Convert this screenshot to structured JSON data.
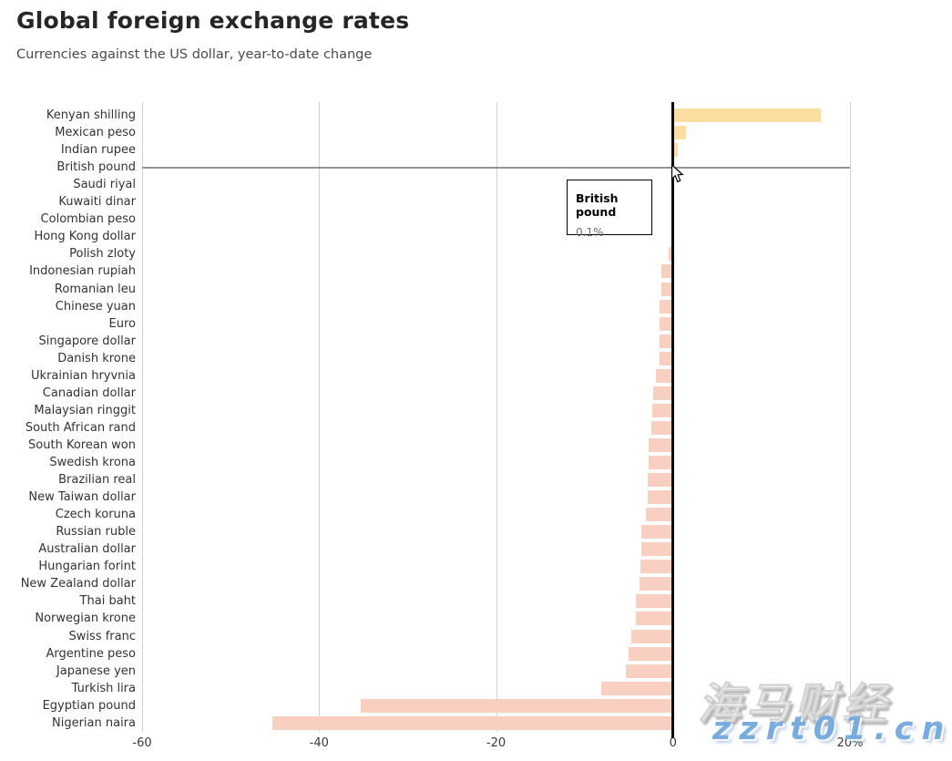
{
  "header": {
    "title": "Global foreign exchange rates",
    "subtitle": "Currencies against the US dollar, year-to-date change"
  },
  "chart_data": {
    "type": "bar",
    "orientation": "horizontal",
    "title": "Global foreign exchange rates",
    "subtitle": "Currencies against the US dollar, year-to-date change",
    "value_unit": "%",
    "xlim": [
      -60,
      20
    ],
    "grid": true,
    "x_ticks": [
      {
        "value": -60,
        "label": "-60"
      },
      {
        "value": -40,
        "label": "-40"
      },
      {
        "value": -20,
        "label": "-20"
      },
      {
        "value": 0,
        "label": "0"
      },
      {
        "value": 20,
        "label": "20%"
      }
    ],
    "highlighted_category": "British pound",
    "categories": [
      "Kenyan shilling",
      "Mexican peso",
      "Indian rupee",
      "British pound",
      "Saudi riyal",
      "Kuwaiti dinar",
      "Colombian peso",
      "Hong Kong dollar",
      "Polish zloty",
      "Indonesian rupiah",
      "Romanian leu",
      "Chinese yuan",
      "Euro",
      "Singapore dollar",
      "Danish krone",
      "Ukrainian hryvnia",
      "Canadian dollar",
      "Malaysian ringgit",
      "South African rand",
      "South Korean won",
      "Swedish krona",
      "Brazilian real",
      "New Taiwan dollar",
      "Czech koruna",
      "Russian ruble",
      "Australian dollar",
      "Hungarian forint",
      "New Zealand dollar",
      "Thai baht",
      "Norwegian krone",
      "Swiss franc",
      "Argentine peso",
      "Japanese yen",
      "Turkish lira",
      "Egyptian pound",
      "Nigerian naira"
    ],
    "values": [
      16.7,
      1.5,
      0.5,
      0.1,
      0.0,
      0.0,
      0.0,
      0.0,
      -0.5,
      -1.3,
      -1.3,
      -1.5,
      -1.5,
      -1.5,
      -1.5,
      -1.9,
      -2.2,
      -2.3,
      -2.4,
      -2.8,
      -2.8,
      -2.9,
      -2.9,
      -3.1,
      -3.6,
      -3.6,
      -3.7,
      -3.8,
      -4.2,
      -4.2,
      -4.7,
      -5.0,
      -5.3,
      -8.1,
      -35.3,
      -45.3
    ],
    "colors": {
      "positive_bar": "#FBDEA1",
      "negative_bar": "#F9CFC2",
      "zero_line": "#0A0A0A",
      "gridline": "#D2D2D2",
      "crosshair": "#949494"
    }
  },
  "tooltip": {
    "currency": "British pound",
    "value": "0.1%"
  },
  "watermark": {
    "line1": "海马财经",
    "line2": "zzrt01.cn"
  }
}
